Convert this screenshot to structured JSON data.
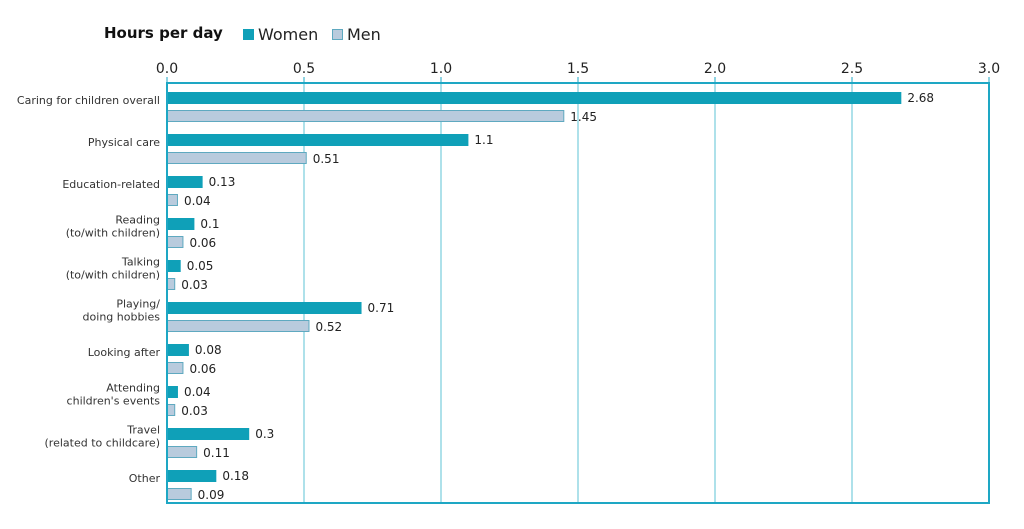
{
  "colors": {
    "women": "#0fa0b8",
    "men": "#b9cbdd",
    "men_border": "#5fa9c0",
    "frame": "#1ea7c4",
    "grid": "#5cc3d6"
  },
  "legend": {
    "title": "Hours per day",
    "women_label": "Women",
    "men_label": "Men"
  },
  "chart_data": {
    "type": "bar",
    "orientation": "horizontal",
    "legend_position": "top-left",
    "grid": true,
    "xlim": [
      0,
      3.0
    ],
    "xticks": [
      "0.0",
      "0.5",
      "1.0",
      "1.5",
      "2.0",
      "2.5",
      "3.0"
    ],
    "categories": [
      [
        "Caring for children overall"
      ],
      [
        "Physical care"
      ],
      [
        "Education-related"
      ],
      [
        "Reading",
        "(to/with children)"
      ],
      [
        "Talking",
        "(to/with children)"
      ],
      [
        "Playing/",
        "doing hobbies"
      ],
      [
        "Looking after"
      ],
      [
        "Attending",
        "children's events"
      ],
      [
        "Travel",
        "(related to childcare)"
      ],
      [
        "Other"
      ]
    ],
    "series": [
      {
        "name": "Women",
        "values": [
          2.68,
          1.1,
          0.13,
          0.1,
          0.05,
          0.71,
          0.08,
          0.04,
          0.3,
          0.18
        ],
        "labels": [
          "2.68",
          "1.1",
          "0.13",
          "0.1",
          "0.05",
          "0.71",
          "0.08",
          "0.04",
          "0.3",
          "0.18"
        ]
      },
      {
        "name": "Men",
        "values": [
          1.45,
          0.51,
          0.04,
          0.06,
          0.03,
          0.52,
          0.06,
          0.03,
          0.11,
          0.09
        ],
        "labels": [
          "1.45",
          "0.51",
          "0.04",
          "0.06",
          "0.03",
          "0.52",
          "0.06",
          "0.03",
          "0.11",
          "0.09"
        ]
      }
    ]
  }
}
